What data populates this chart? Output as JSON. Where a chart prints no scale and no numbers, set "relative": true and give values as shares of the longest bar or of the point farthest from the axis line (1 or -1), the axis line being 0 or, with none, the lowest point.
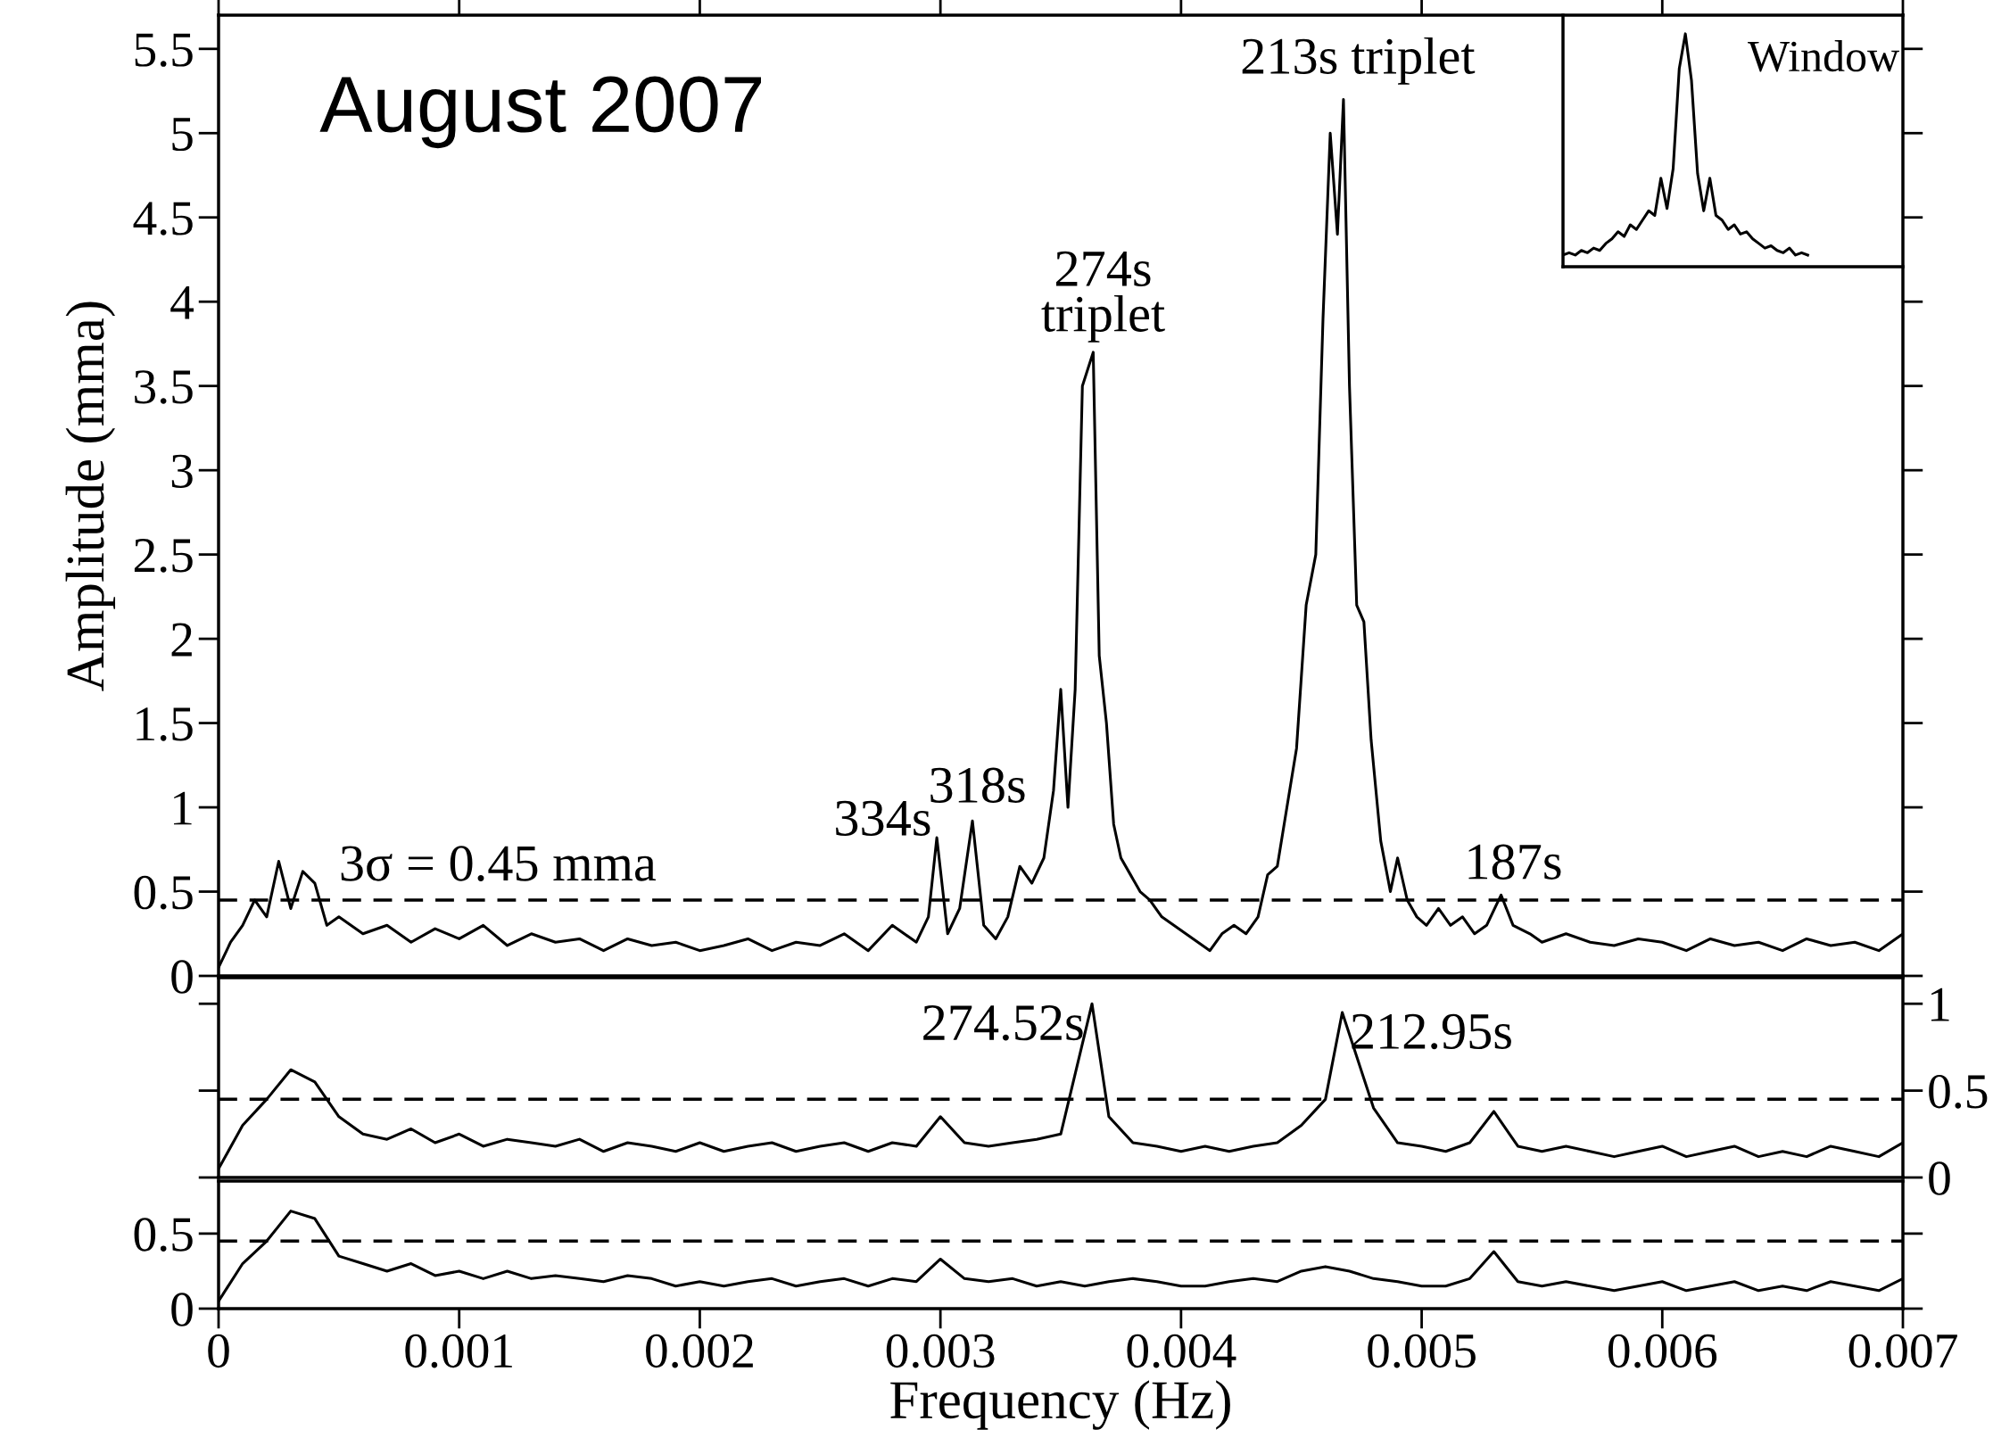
{
  "chart_data": [
    {
      "type": "line",
      "ylabel": "Amplitude (mma)",
      "xlim": [
        0,
        0.007
      ],
      "xticks": [
        0,
        0.001,
        0.002,
        0.003,
        0.004,
        0.005,
        0.006,
        0.007
      ],
      "ylim": [
        0,
        5.7
      ],
      "yticks": [
        0,
        0.5,
        1,
        1.5,
        2,
        2.5,
        3,
        3.5,
        4,
        4.5,
        5,
        5.5
      ],
      "tick_labels": "y",
      "grid": false,
      "legend": false,
      "marker": "none",
      "line_style": "solid",
      "series": [
        {
          "color": "#000000",
          "x": [
            0,
            5e-05,
            0.0001,
            0.00015,
            0.0002,
            0.00025,
            0.0003,
            0.00035,
            0.0004,
            0.00045,
            0.0005,
            0.0006,
            0.0007,
            0.0008,
            0.0009,
            0.001,
            0.0011,
            0.0012,
            0.0013,
            0.0014,
            0.0015,
            0.0016,
            0.0017,
            0.0018,
            0.0019,
            0.002,
            0.0021,
            0.0022,
            0.0023,
            0.0024,
            0.0025,
            0.0026,
            0.0027,
            0.0028,
            0.0029,
            0.00295,
            0.002985,
            0.00303,
            0.00308,
            0.003133,
            0.00318,
            0.00323,
            0.00328,
            0.00333,
            0.00338,
            0.00343,
            0.00347,
            0.0035,
            0.00353,
            0.00356,
            0.00359,
            0.003635,
            0.00366,
            0.00369,
            0.00372,
            0.00375,
            0.00379,
            0.00383,
            0.00387,
            0.00392,
            0.00397,
            0.00402,
            0.00407,
            0.00412,
            0.00417,
            0.00422,
            0.00427,
            0.00432,
            0.00436,
            0.0044,
            0.00444,
            0.00448,
            0.00452,
            0.00456,
            0.00459,
            0.00462,
            0.00465,
            0.004675,
            0.0047,
            0.00473,
            0.00476,
            0.00479,
            0.00483,
            0.00487,
            0.0049,
            0.00494,
            0.00498,
            0.00502,
            0.00507,
            0.00512,
            0.00517,
            0.00522,
            0.00527,
            0.00533,
            0.00538,
            0.00545,
            0.0055,
            0.0056,
            0.0057,
            0.0058,
            0.0059,
            0.006,
            0.0061,
            0.0062,
            0.0063,
            0.0064,
            0.0065,
            0.0066,
            0.0067,
            0.0068,
            0.0069,
            0.007
          ],
          "values": [
            0.05,
            0.2,
            0.3,
            0.45,
            0.35,
            0.68,
            0.4,
            0.62,
            0.55,
            0.3,
            0.35,
            0.25,
            0.3,
            0.2,
            0.28,
            0.22,
            0.3,
            0.18,
            0.25,
            0.2,
            0.22,
            0.15,
            0.22,
            0.18,
            0.2,
            0.15,
            0.18,
            0.22,
            0.15,
            0.2,
            0.18,
            0.25,
            0.15,
            0.3,
            0.2,
            0.35,
            0.82,
            0.25,
            0.4,
            0.92,
            0.3,
            0.22,
            0.35,
            0.65,
            0.55,
            0.7,
            1.1,
            1.7,
            1.0,
            1.7,
            3.5,
            3.7,
            1.9,
            1.5,
            0.9,
            0.7,
            0.6,
            0.5,
            0.45,
            0.35,
            0.3,
            0.25,
            0.2,
            0.15,
            0.25,
            0.3,
            0.25,
            0.35,
            0.6,
            0.65,
            1.0,
            1.35,
            2.2,
            2.5,
            3.9,
            5.0,
            4.4,
            5.2,
            3.5,
            2.2,
            2.1,
            1.4,
            0.8,
            0.5,
            0.7,
            0.45,
            0.35,
            0.3,
            0.4,
            0.3,
            0.35,
            0.25,
            0.3,
            0.48,
            0.3,
            0.25,
            0.2,
            0.25,
            0.2,
            0.18,
            0.22,
            0.2,
            0.15,
            0.22,
            0.18,
            0.2,
            0.15,
            0.22,
            0.18,
            0.2,
            0.15,
            0.25
          ]
        }
      ],
      "ref_lines": [
        {
          "axis": "y",
          "value": 0.45,
          "label": "3σ = 0.45 mma",
          "line_style": "dashed",
          "color": "#000000"
        }
      ],
      "annotations": [
        "August 2007",
        {
          "text": "274s\ntriplet",
          "x": 0.003635,
          "y": 3.7
        },
        {
          "text": "213s",
          "x": 0.004675,
          "y": 5.2
        },
        {
          "text": "triplet",
          "x": 0.004675,
          "y": 5.2
        },
        {
          "text": "334s",
          "x": 0.002985,
          "y": 0.82
        },
        {
          "text": "318s",
          "x": 0.003133,
          "y": 0.92
        },
        {
          "text": "187s",
          "x": 0.00533,
          "y": 0.48
        }
      ]
    },
    {
      "type": "line",
      "xlim": [
        0,
        0.007
      ],
      "xticks": [
        0,
        0.001,
        0.002,
        0.003,
        0.004,
        0.005,
        0.006,
        0.007
      ],
      "ylim": [
        0,
        1.15
      ],
      "yticks": [
        0,
        0.5,
        1
      ],
      "tick_labels": "y",
      "grid": false,
      "legend": false,
      "marker": "none",
      "line_style": "solid",
      "series": [
        {
          "color": "#000000",
          "x": [
            0,
            0.0001,
            0.0002,
            0.0003,
            0.0004,
            0.0005,
            0.0006,
            0.0007,
            0.0008,
            0.0009,
            0.001,
            0.0011,
            0.0012,
            0.0013,
            0.0014,
            0.0015,
            0.0016,
            0.0017,
            0.0018,
            0.0019,
            0.002,
            0.0021,
            0.0022,
            0.0023,
            0.0024,
            0.0025,
            0.0026,
            0.0027,
            0.0028,
            0.0029,
            0.003,
            0.0031,
            0.0032,
            0.0033,
            0.0034,
            0.0035,
            0.00363,
            0.0037,
            0.0038,
            0.0039,
            0.004,
            0.0041,
            0.0042,
            0.0043,
            0.0044,
            0.0045,
            0.0046,
            0.00467,
            0.0048,
            0.0049,
            0.005,
            0.0051,
            0.0052,
            0.0053,
            0.0054,
            0.0055,
            0.0056,
            0.0057,
            0.0058,
            0.0059,
            0.006,
            0.0061,
            0.0062,
            0.0063,
            0.0064,
            0.0065,
            0.0066,
            0.0067,
            0.0068,
            0.0069,
            0.007
          ],
          "values": [
            0.05,
            0.3,
            0.45,
            0.62,
            0.55,
            0.35,
            0.25,
            0.22,
            0.28,
            0.2,
            0.25,
            0.18,
            0.22,
            0.2,
            0.18,
            0.22,
            0.15,
            0.2,
            0.18,
            0.15,
            0.2,
            0.15,
            0.18,
            0.2,
            0.15,
            0.18,
            0.2,
            0.15,
            0.2,
            0.18,
            0.35,
            0.2,
            0.18,
            0.2,
            0.22,
            0.25,
            1.0,
            0.35,
            0.2,
            0.18,
            0.15,
            0.18,
            0.15,
            0.18,
            0.2,
            0.3,
            0.45,
            0.95,
            0.4,
            0.2,
            0.18,
            0.15,
            0.2,
            0.38,
            0.18,
            0.15,
            0.18,
            0.15,
            0.12,
            0.15,
            0.18,
            0.12,
            0.15,
            0.18,
            0.12,
            0.15,
            0.12,
            0.18,
            0.15,
            0.12,
            0.2
          ]
        }
      ],
      "ref_lines": [
        {
          "axis": "y",
          "value": 0.45,
          "line_style": "dashed",
          "color": "#000000"
        }
      ],
      "annotations": [
        {
          "text": "274.52s",
          "x": 0.00363,
          "y": 1.0
        },
        {
          "text": "212.95s",
          "x": 0.00467,
          "y": 0.95
        }
      ]
    },
    {
      "type": "line",
      "xlabel": "Frequency (Hz)",
      "xlim": [
        0,
        0.007
      ],
      "xticks": [
        0,
        0.001,
        0.002,
        0.003,
        0.004,
        0.005,
        0.006,
        0.007
      ],
      "ylim": [
        0,
        0.85
      ],
      "yticks": [
        0,
        0.5
      ],
      "grid": false,
      "legend": false,
      "marker": "none",
      "line_style": "solid",
      "series": [
        {
          "color": "#000000",
          "x": [
            0,
            0.0001,
            0.0002,
            0.0003,
            0.0004,
            0.0005,
            0.0006,
            0.0007,
            0.0008,
            0.0009,
            0.001,
            0.0011,
            0.0012,
            0.0013,
            0.0014,
            0.0015,
            0.0016,
            0.0017,
            0.0018,
            0.0019,
            0.002,
            0.0021,
            0.0022,
            0.0023,
            0.0024,
            0.0025,
            0.0026,
            0.0027,
            0.0028,
            0.0029,
            0.003,
            0.0031,
            0.0032,
            0.0033,
            0.0034,
            0.0035,
            0.0036,
            0.0037,
            0.0038,
            0.0039,
            0.004,
            0.0041,
            0.0042,
            0.0043,
            0.0044,
            0.0045,
            0.0046,
            0.0047,
            0.0048,
            0.0049,
            0.005,
            0.0051,
            0.0052,
            0.0053,
            0.0054,
            0.0055,
            0.0056,
            0.0057,
            0.0058,
            0.0059,
            0.006,
            0.0061,
            0.0062,
            0.0063,
            0.0064,
            0.0065,
            0.0066,
            0.0067,
            0.0068,
            0.0069,
            0.007
          ],
          "values": [
            0.05,
            0.3,
            0.45,
            0.65,
            0.6,
            0.35,
            0.3,
            0.25,
            0.3,
            0.22,
            0.25,
            0.2,
            0.25,
            0.2,
            0.22,
            0.2,
            0.18,
            0.22,
            0.2,
            0.15,
            0.18,
            0.15,
            0.18,
            0.2,
            0.15,
            0.18,
            0.2,
            0.15,
            0.2,
            0.18,
            0.33,
            0.2,
            0.18,
            0.2,
            0.15,
            0.18,
            0.15,
            0.18,
            0.2,
            0.18,
            0.15,
            0.15,
            0.18,
            0.2,
            0.18,
            0.25,
            0.28,
            0.25,
            0.2,
            0.18,
            0.15,
            0.15,
            0.2,
            0.38,
            0.18,
            0.15,
            0.18,
            0.15,
            0.12,
            0.15,
            0.18,
            0.12,
            0.15,
            0.18,
            0.12,
            0.15,
            0.12,
            0.18,
            0.15,
            0.12,
            0.2
          ]
        }
      ],
      "ref_lines": [
        {
          "axis": "y",
          "value": 0.45,
          "line_style": "dashed",
          "color": "#000000"
        }
      ]
    },
    {
      "type": "line",
      "relative": true,
      "tick_labels": false,
      "legend": false,
      "marker": "none",
      "line_style": "solid",
      "categories": [
        null,
        null,
        null,
        null,
        null,
        null,
        null,
        null,
        null,
        null,
        null,
        null,
        null,
        null,
        null,
        null,
        null,
        null,
        null,
        null,
        null,
        null,
        null,
        null,
        null,
        null,
        null,
        null,
        null,
        null,
        null,
        null,
        null,
        null,
        null,
        null,
        null,
        null,
        null,
        null,
        null
      ],
      "series": [
        {
          "color": "#000000",
          "values": [
            0.05,
            0.06,
            0.05,
            0.07,
            0.06,
            0.08,
            0.07,
            0.1,
            0.12,
            0.15,
            0.13,
            0.18,
            0.16,
            0.2,
            0.24,
            0.22,
            0.38,
            0.25,
            0.42,
            0.85,
            1.0,
            0.8,
            0.4,
            0.24,
            0.38,
            0.22,
            0.2,
            0.16,
            0.18,
            0.14,
            0.15,
            0.12,
            0.1,
            0.08,
            0.09,
            0.07,
            0.06,
            0.08,
            0.05,
            0.06,
            0.05
          ]
        }
      ],
      "annotations": [
        "Window"
      ]
    }
  ]
}
